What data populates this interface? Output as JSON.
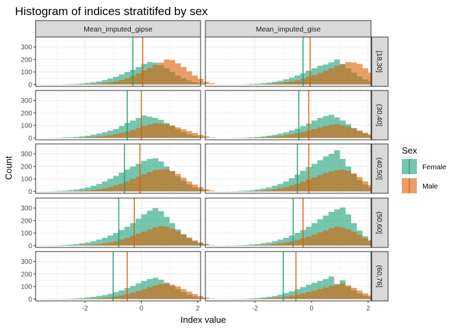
{
  "chart_data": {
    "type": "histogram",
    "title": "Histogram of indices stratitifed by sex",
    "xlabel": "Index value",
    "ylabel": "Count",
    "xlim": [
      -3.75,
      2.1
    ],
    "ylim": [
      -15,
      380
    ],
    "x_ticks": [
      -2,
      0,
      2
    ],
    "x_tick_labels": [
      "-2",
      "0",
      "2"
    ],
    "y_ticks": [
      0,
      100,
      200,
      300
    ],
    "y_tick_labels": [
      "0",
      "100",
      "200",
      "300"
    ],
    "grid": true,
    "legend_position": "right",
    "legend_title": "Sex",
    "columns": [
      "Mean_imputed_gipse",
      "Mean_imputed_gise"
    ],
    "rows": [
      "[18,30]",
      "(30,40]",
      "(40,50]",
      "(50,60]",
      "(60,76]"
    ],
    "series": [
      {
        "name": "Female",
        "color": "#1b9e77"
      },
      {
        "name": "Male",
        "color": "#d95f02"
      }
    ],
    "bin_start": -3.4,
    "bin_width": 0.2,
    "panels": [
      {
        "column": "Mean_imputed_gipse",
        "row": "[18,30]",
        "female": [
          0,
          1,
          1,
          2,
          3,
          5,
          8,
          12,
          18,
          25,
          35,
          48,
          62,
          80,
          100,
          118,
          140,
          165,
          180,
          175,
          155,
          130,
          100,
          72,
          50,
          32,
          18,
          9,
          4,
          2
        ],
        "male": [
          0,
          0,
          0,
          0,
          1,
          1,
          2,
          3,
          5,
          8,
          12,
          18,
          25,
          35,
          50,
          68,
          90,
          112,
          132,
          155,
          175,
          200,
          195,
          170,
          140,
          105,
          72,
          45,
          22,
          10
        ],
        "female_mean": -0.3,
        "male_mean": 0.05
      },
      {
        "column": "Mean_imputed_gise",
        "row": "[18,30]",
        "female": [
          0,
          0,
          0,
          0,
          0,
          2,
          4,
          6,
          10,
          15,
          22,
          30,
          42,
          55,
          72,
          90,
          110,
          130,
          150,
          160,
          178,
          200,
          165,
          130,
          95,
          65,
          40,
          22,
          10,
          4
        ],
        "male": [
          0,
          0,
          0,
          0,
          0,
          0,
          1,
          2,
          3,
          5,
          8,
          12,
          18,
          25,
          32,
          45,
          60,
          75,
          92,
          110,
          130,
          150,
          160,
          180,
          175,
          165,
          130,
          95,
          60,
          30
        ],
        "female_mean": -0.3,
        "male_mean": -0.05
      },
      {
        "column": "Mean_imputed_gipse",
        "row": "(30,40]",
        "female": [
          0,
          1,
          2,
          4,
          6,
          8,
          12,
          18,
          26,
          35,
          45,
          58,
          72,
          95,
          120,
          140,
          160,
          180,
          170,
          160,
          145,
          120,
          95,
          70,
          48,
          30,
          18,
          10,
          5,
          2
        ],
        "male": [
          0,
          0,
          0,
          1,
          1,
          2,
          3,
          5,
          8,
          12,
          16,
          22,
          30,
          40,
          52,
          65,
          80,
          95,
          108,
          118,
          115,
          110,
          100,
          85,
          70,
          55,
          40,
          25,
          14,
          6
        ],
        "female_mean": -0.5,
        "male_mean": 0.0
      },
      {
        "column": "Mean_imputed_gise",
        "row": "(30,40]",
        "female": [
          0,
          0,
          0,
          1,
          2,
          3,
          5,
          8,
          12,
          18,
          25,
          35,
          45,
          60,
          75,
          95,
          115,
          140,
          160,
          175,
          185,
          165,
          140,
          110,
          80,
          55,
          35,
          20,
          10,
          4
        ],
        "male": [
          0,
          0,
          0,
          0,
          0,
          1,
          2,
          3,
          5,
          8,
          12,
          16,
          22,
          30,
          38,
          48,
          60,
          72,
          85,
          95,
          105,
          110,
          100,
          90,
          75,
          60,
          42,
          28,
          15,
          6
        ],
        "female_mean": -0.45,
        "male_mean": -0.1
      },
      {
        "column": "Mean_imputed_gipse",
        "row": "(40,50]",
        "female": [
          1,
          2,
          4,
          6,
          10,
          15,
          22,
          32,
          45,
          60,
          80,
          100,
          125,
          150,
          175,
          200,
          220,
          245,
          260,
          265,
          240,
          200,
          160,
          120,
          85,
          55,
          32,
          18,
          8,
          3
        ],
        "male": [
          0,
          0,
          1,
          1,
          2,
          3,
          5,
          8,
          12,
          18,
          25,
          35,
          48,
          62,
          80,
          98,
          118,
          138,
          155,
          170,
          175,
          178,
          165,
          140,
          110,
          80,
          55,
          35,
          18,
          8
        ],
        "female_mean": -0.6,
        "male_mean": -0.05
      },
      {
        "column": "Mean_imputed_gise",
        "row": "(40,50]",
        "female": [
          0,
          0,
          1,
          2,
          4,
          6,
          10,
          15,
          22,
          32,
          45,
          60,
          80,
          105,
          135,
          165,
          195,
          220,
          250,
          280,
          300,
          330,
          260,
          200,
          140,
          90,
          55,
          30,
          14,
          5
        ],
        "male": [
          0,
          0,
          0,
          0,
          1,
          2,
          3,
          5,
          8,
          12,
          18,
          25,
          35,
          48,
          62,
          78,
          95,
          112,
          130,
          148,
          160,
          170,
          175,
          165,
          145,
          115,
          80,
          50,
          25,
          10
        ],
        "female_mean": -0.5,
        "male_mean": -0.1
      },
      {
        "column": "Mean_imputed_gipse",
        "row": "(50,60]",
        "female": [
          1,
          2,
          3,
          5,
          8,
          12,
          18,
          25,
          35,
          48,
          62,
          80,
          100,
          125,
          150,
          180,
          215,
          250,
          280,
          300,
          275,
          230,
          180,
          130,
          90,
          58,
          35,
          20,
          10,
          4
        ],
        "male": [
          0,
          0,
          0,
          1,
          1,
          2,
          3,
          5,
          8,
          12,
          18,
          25,
          35,
          48,
          62,
          78,
          95,
          112,
          130,
          145,
          155,
          150,
          135,
          115,
          90,
          65,
          42,
          25,
          12,
          5
        ],
        "female_mean": -0.8,
        "male_mean": -0.25
      },
      {
        "column": "Mean_imputed_gise",
        "row": "(50,60]",
        "female": [
          0,
          0,
          1,
          2,
          3,
          5,
          8,
          12,
          18,
          25,
          35,
          48,
          62,
          80,
          100,
          125,
          150,
          180,
          210,
          240,
          270,
          290,
          305,
          250,
          180,
          120,
          75,
          42,
          20,
          8
        ],
        "male": [
          0,
          0,
          0,
          0,
          1,
          1,
          2,
          3,
          5,
          8,
          12,
          18,
          25,
          35,
          45,
          58,
          72,
          88,
          105,
          122,
          138,
          150,
          145,
          130,
          110,
          85,
          60,
          38,
          20,
          8
        ],
        "female_mean": -0.65,
        "male_mean": -0.3
      },
      {
        "column": "Mean_imputed_gipse",
        "row": "(60,76]",
        "female": [
          0,
          1,
          1,
          2,
          3,
          5,
          8,
          12,
          18,
          25,
          32,
          42,
          55,
          70,
          88,
          105,
          125,
          145,
          160,
          170,
          155,
          130,
          105,
          80,
          55,
          35,
          20,
          10,
          5,
          2
        ],
        "male": [
          0,
          0,
          0,
          0,
          1,
          1,
          2,
          3,
          5,
          7,
          10,
          14,
          20,
          28,
          38,
          50,
          65,
          80,
          95,
          108,
          120,
          125,
          115,
          100,
          80,
          60,
          40,
          25,
          12,
          5
        ],
        "female_mean": -1.0,
        "male_mean": -0.5
      },
      {
        "column": "Mean_imputed_gise",
        "row": "(60,76]",
        "female": [
          0,
          0,
          0,
          1,
          2,
          3,
          5,
          8,
          12,
          18,
          25,
          35,
          48,
          62,
          78,
          95,
          115,
          130,
          145,
          160,
          180,
          120,
          150,
          100,
          70,
          45,
          28,
          15,
          7,
          3
        ],
        "male": [
          0,
          0,
          0,
          0,
          0,
          1,
          2,
          3,
          5,
          7,
          10,
          14,
          20,
          27,
          35,
          45,
          56,
          68,
          80,
          92,
          105,
          115,
          125,
          110,
          90,
          68,
          45,
          28,
          14,
          6
        ],
        "female_mean": -1.0,
        "male_mean": -0.55
      }
    ]
  }
}
